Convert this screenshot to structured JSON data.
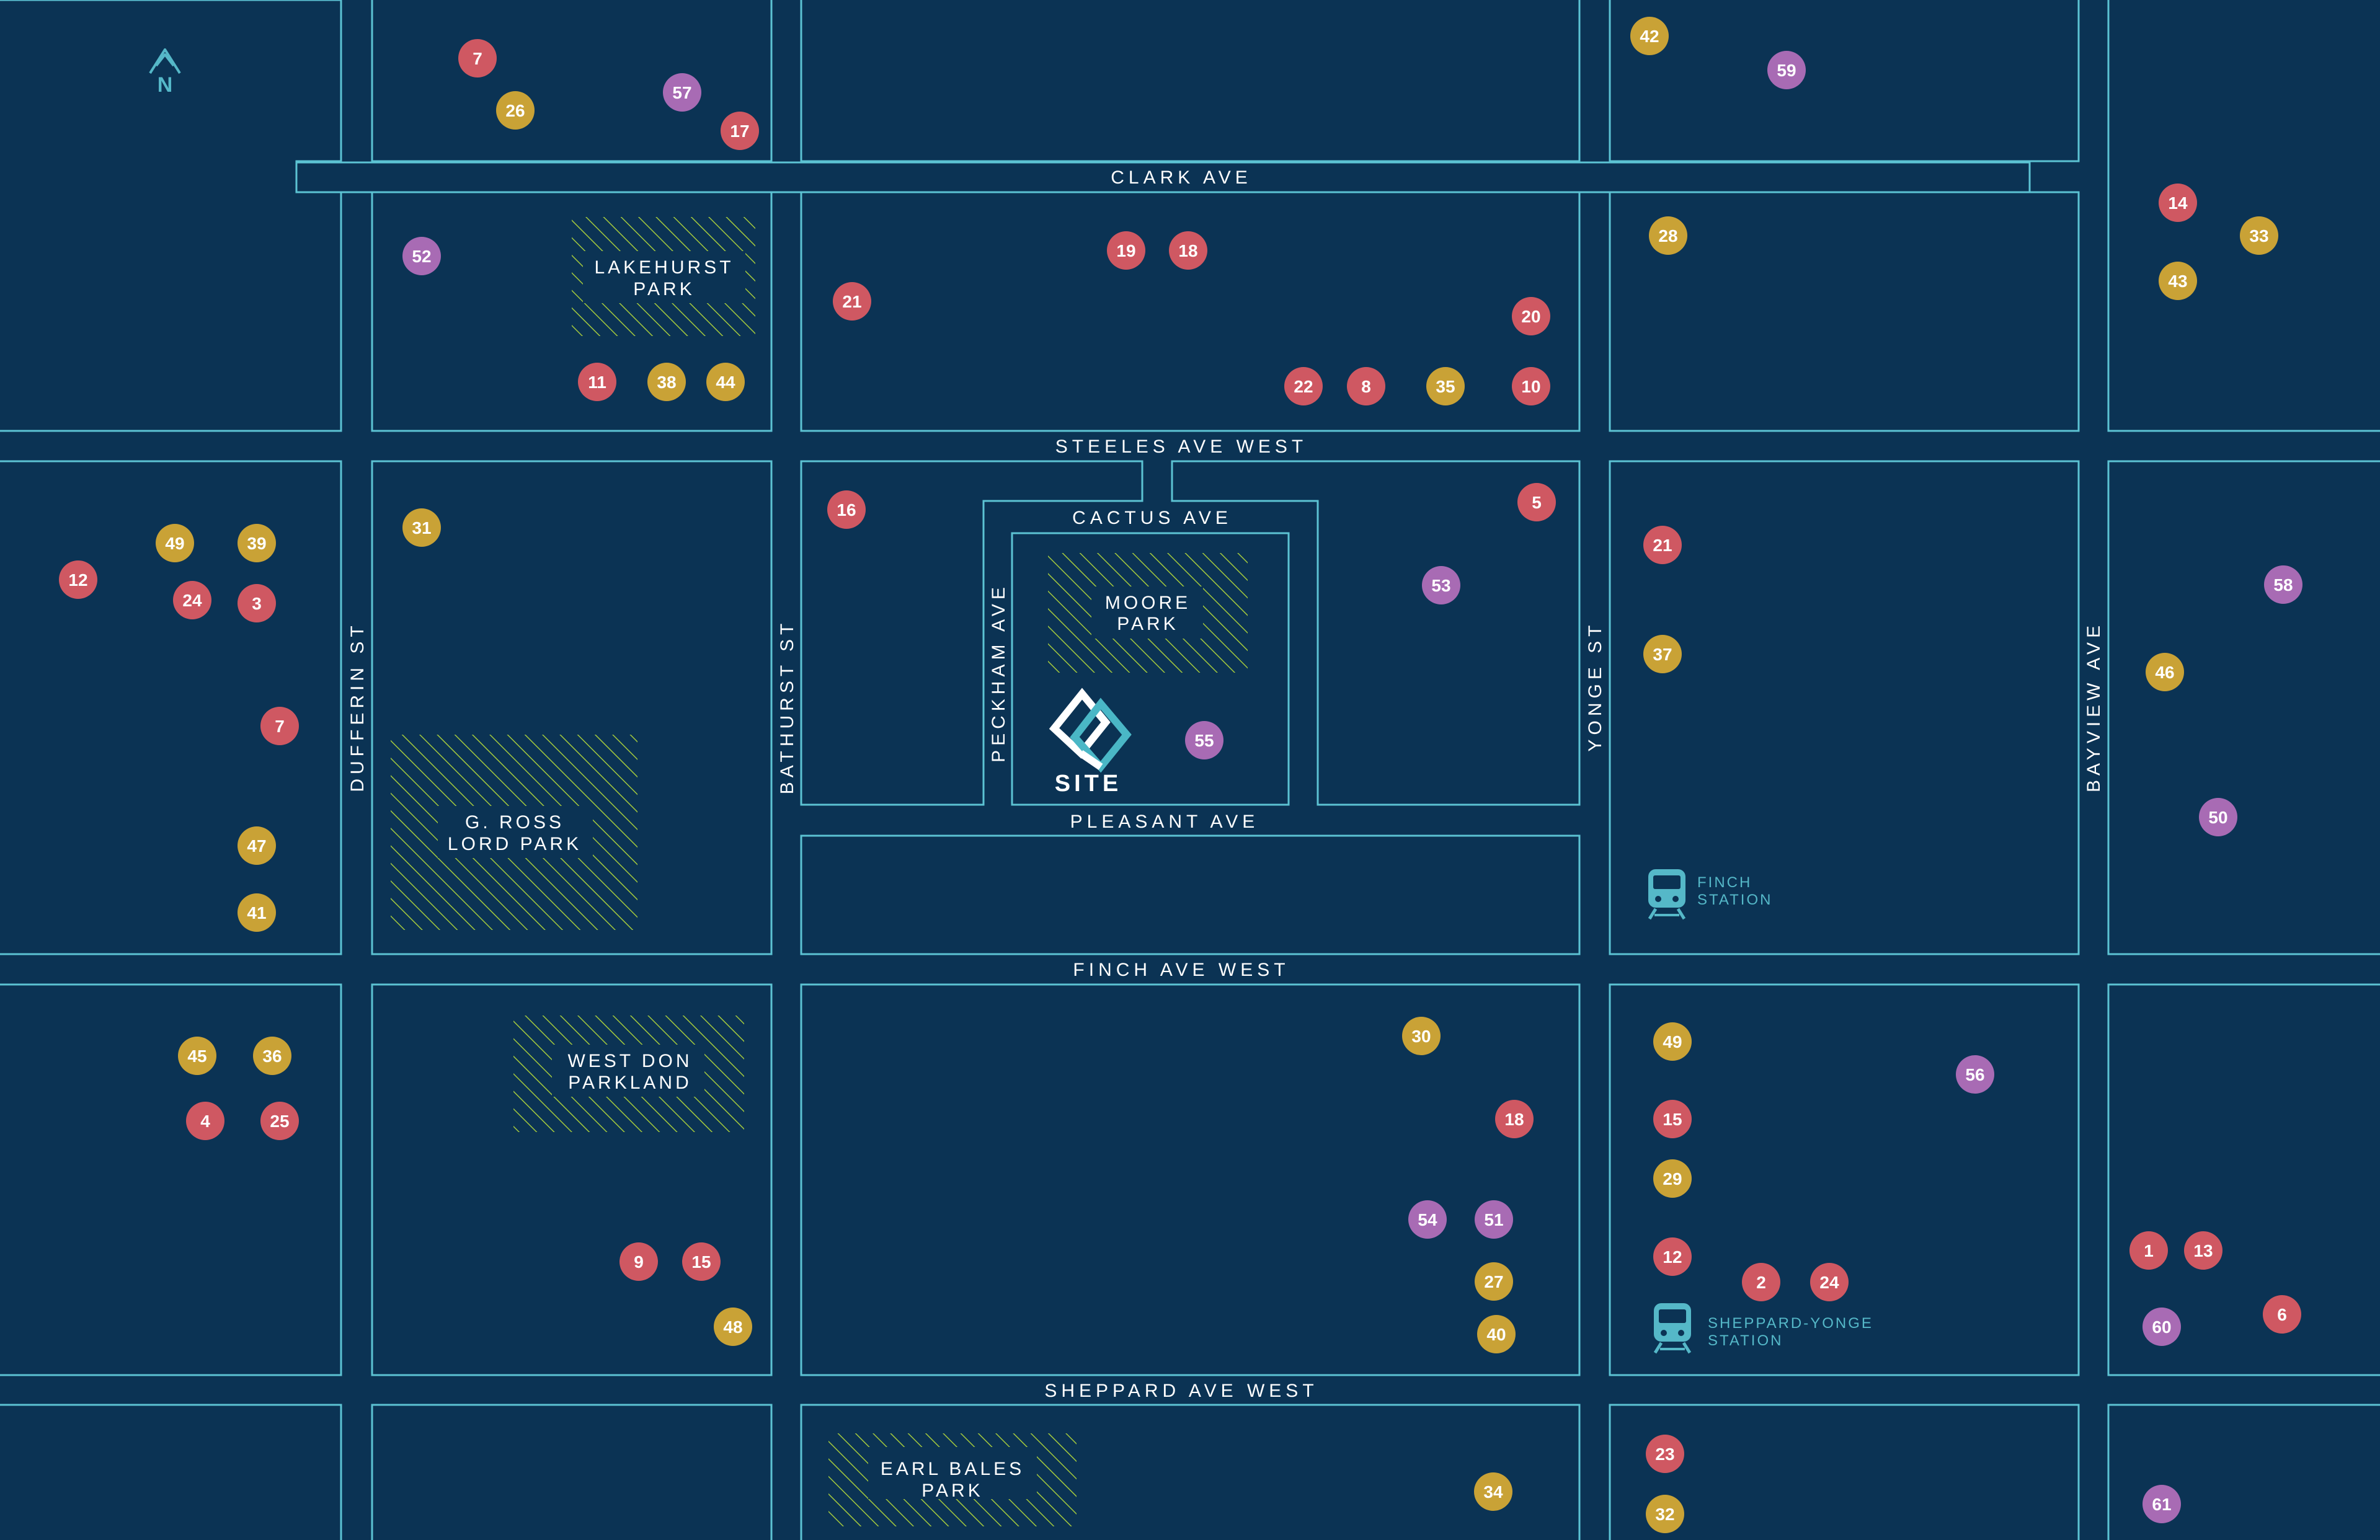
{
  "map": {
    "north_label": "N",
    "site_label": "SITE",
    "colors": {
      "background": "#0b3354",
      "block_outline": "#5cc3d3",
      "park_hatch": "#a4c93d",
      "marker_red": "#cf5862",
      "marker_gold": "#c9a236",
      "marker_purple": "#a86bb4",
      "station": "#55b8c8"
    },
    "streets": {
      "clark": "CLARK AVE",
      "steeles": "STEELES AVE WEST",
      "cactus": "CACTUS AVE",
      "pleasant": "PLEASANT AVE",
      "finch": "FINCH AVE WEST",
      "sheppard": "SHEPPARD AVE WEST",
      "dufferin": "DUFFERIN ST",
      "bathurst": "BATHURST ST",
      "peckham": "PECKHAM AVE",
      "yonge": "YONGE ST",
      "bayview": "BAYVIEW AVE"
    },
    "parks": {
      "lakehurst": [
        "LAKEHURST",
        "PARK"
      ],
      "moore": [
        "MOORE",
        "PARK"
      ],
      "gross": [
        "G. ROSS",
        "LORD PARK"
      ],
      "westdon": [
        "WEST DON",
        "PARKLAND"
      ],
      "earlbales": [
        "EARL BALES",
        "PARK"
      ]
    },
    "stations": {
      "finch": [
        "FINCH",
        "STATION"
      ],
      "sheppard": [
        "SHEPPARD-YONGE",
        "STATION"
      ]
    },
    "markers": [
      {
        "n": "7",
        "c": "red"
      },
      {
        "n": "26",
        "c": "gold"
      },
      {
        "n": "57",
        "c": "purple"
      },
      {
        "n": "17",
        "c": "red"
      },
      {
        "n": "42",
        "c": "gold"
      },
      {
        "n": "59",
        "c": "purple"
      },
      {
        "n": "52",
        "c": "purple"
      },
      {
        "n": "11",
        "c": "red"
      },
      {
        "n": "38",
        "c": "gold"
      },
      {
        "n": "44",
        "c": "gold"
      },
      {
        "n": "19",
        "c": "red"
      },
      {
        "n": "18",
        "c": "red"
      },
      {
        "n": "21",
        "c": "red"
      },
      {
        "n": "20",
        "c": "red"
      },
      {
        "n": "22",
        "c": "red"
      },
      {
        "n": "8",
        "c": "red"
      },
      {
        "n": "35",
        "c": "gold"
      },
      {
        "n": "10",
        "c": "red"
      },
      {
        "n": "28",
        "c": "gold"
      },
      {
        "n": "14",
        "c": "red"
      },
      {
        "n": "33",
        "c": "gold"
      },
      {
        "n": "43",
        "c": "gold"
      },
      {
        "n": "49",
        "c": "gold"
      },
      {
        "n": "39",
        "c": "gold"
      },
      {
        "n": "12",
        "c": "red"
      },
      {
        "n": "24",
        "c": "red"
      },
      {
        "n": "3",
        "c": "red"
      },
      {
        "n": "7",
        "c": "red"
      },
      {
        "n": "47",
        "c": "gold"
      },
      {
        "n": "41",
        "c": "gold"
      },
      {
        "n": "31",
        "c": "gold"
      },
      {
        "n": "16",
        "c": "red"
      },
      {
        "n": "5",
        "c": "red"
      },
      {
        "n": "53",
        "c": "purple"
      },
      {
        "n": "55",
        "c": "purple"
      },
      {
        "n": "21",
        "c": "red"
      },
      {
        "n": "37",
        "c": "gold"
      },
      {
        "n": "58",
        "c": "purple"
      },
      {
        "n": "46",
        "c": "gold"
      },
      {
        "n": "50",
        "c": "purple"
      },
      {
        "n": "45",
        "c": "gold"
      },
      {
        "n": "36",
        "c": "gold"
      },
      {
        "n": "4",
        "c": "red"
      },
      {
        "n": "25",
        "c": "red"
      },
      {
        "n": "9",
        "c": "red"
      },
      {
        "n": "15",
        "c": "red"
      },
      {
        "n": "48",
        "c": "gold"
      },
      {
        "n": "30",
        "c": "gold"
      },
      {
        "n": "18",
        "c": "red"
      },
      {
        "n": "54",
        "c": "purple"
      },
      {
        "n": "51",
        "c": "purple"
      },
      {
        "n": "27",
        "c": "gold"
      },
      {
        "n": "40",
        "c": "gold"
      },
      {
        "n": "49",
        "c": "gold"
      },
      {
        "n": "15",
        "c": "red"
      },
      {
        "n": "29",
        "c": "gold"
      },
      {
        "n": "12",
        "c": "red"
      },
      {
        "n": "2",
        "c": "red"
      },
      {
        "n": "24",
        "c": "red"
      },
      {
        "n": "56",
        "c": "purple"
      },
      {
        "n": "1",
        "c": "red"
      },
      {
        "n": "13",
        "c": "red"
      },
      {
        "n": "60",
        "c": "purple"
      },
      {
        "n": "6",
        "c": "red"
      },
      {
        "n": "34",
        "c": "gold"
      },
      {
        "n": "23",
        "c": "red"
      },
      {
        "n": "32",
        "c": "gold"
      },
      {
        "n": "61",
        "c": "purple"
      }
    ]
  }
}
